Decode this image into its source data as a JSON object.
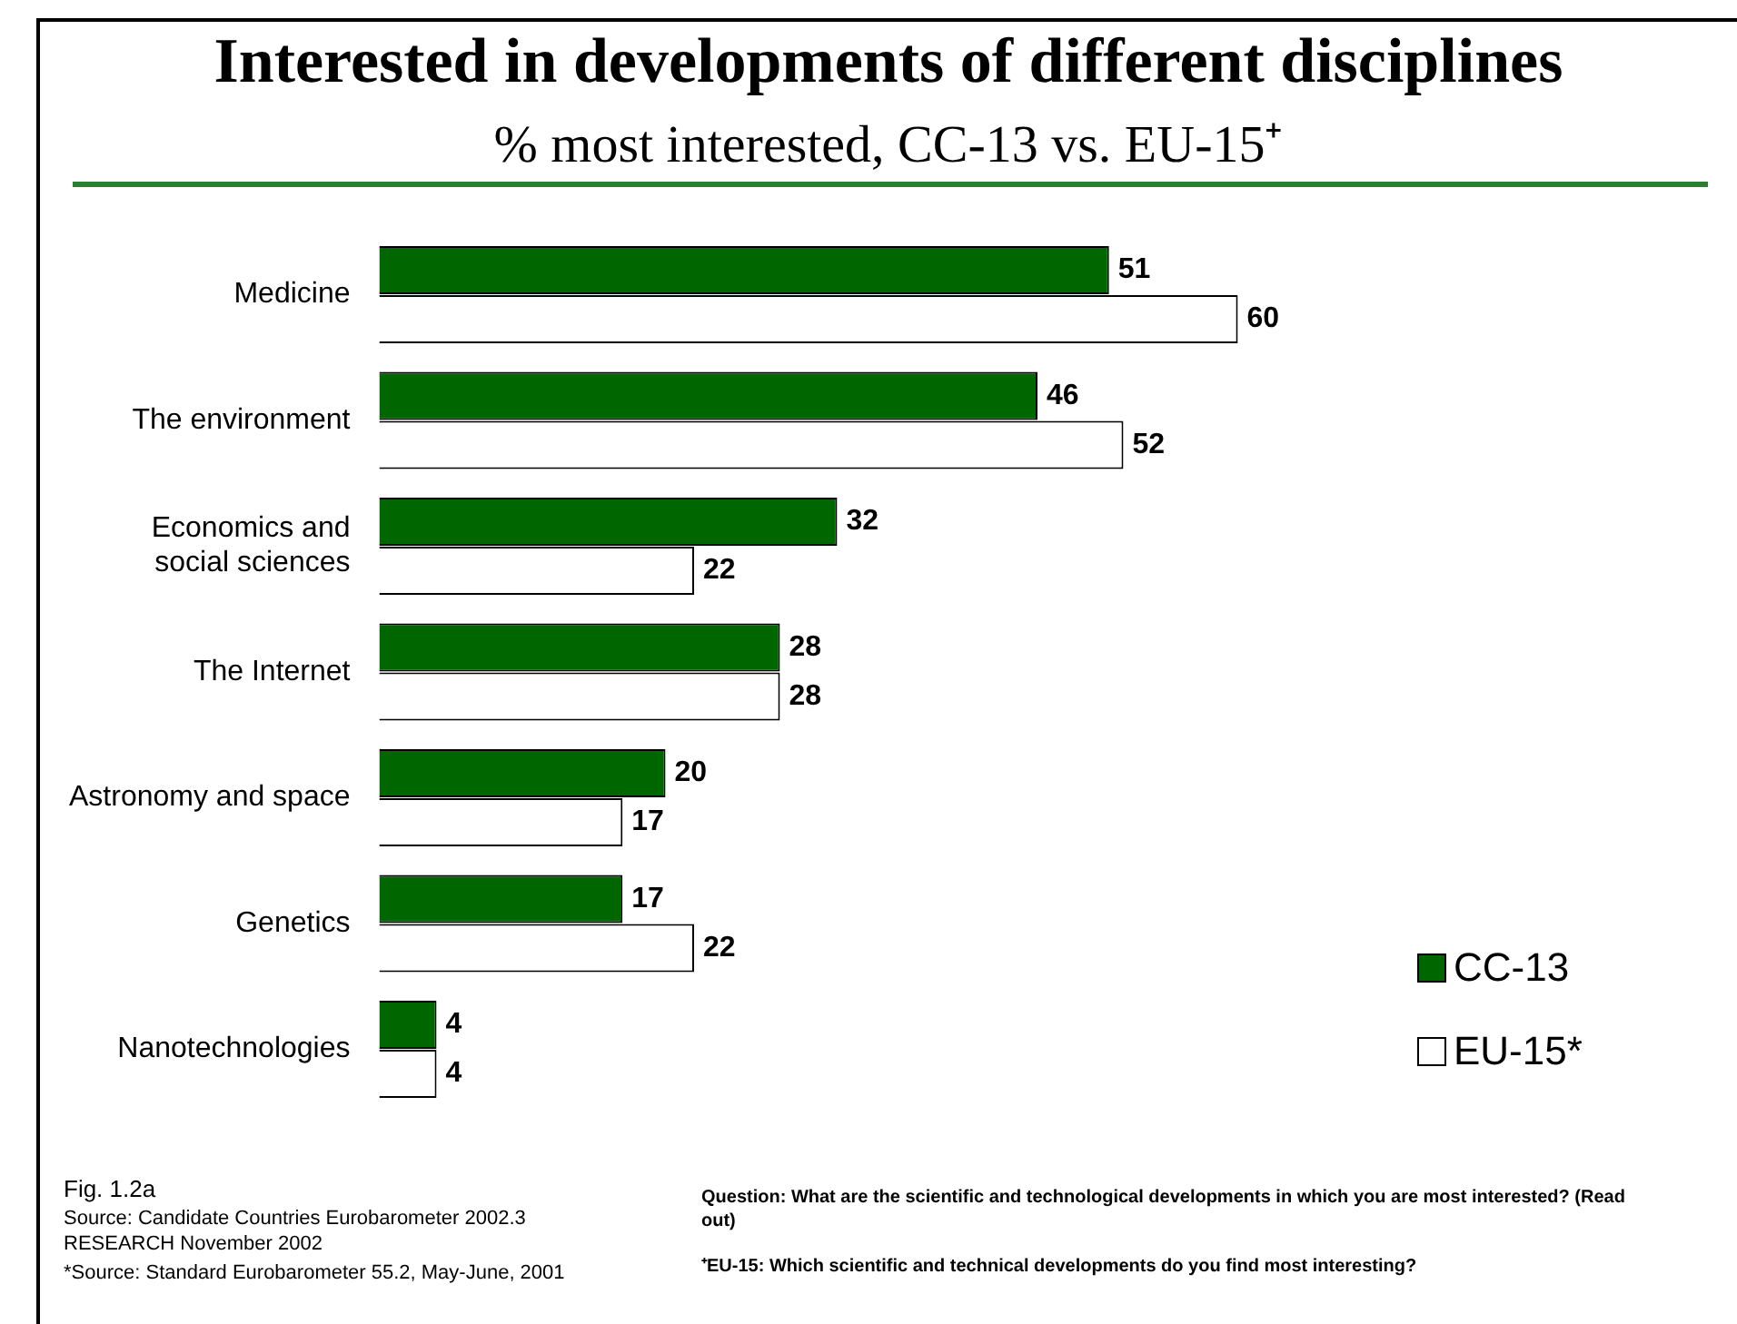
{
  "chart_data": {
    "type": "bar",
    "orientation": "horizontal",
    "title": "Interested in developments of different disciplines",
    "subtitle": "% most interested, CC-13 vs. EU-15⁺",
    "categories": [
      "Medicine",
      "The environment",
      "Economics and social sciences",
      "The Internet",
      "Astronomy and space",
      "Genetics",
      "Nanotechnologies"
    ],
    "series": [
      {
        "name": "CC-13",
        "color": "#006600",
        "values": [
          51,
          46,
          32,
          28,
          20,
          17,
          4
        ]
      },
      {
        "name": "EU-15*",
        "color": "#ffffff",
        "values": [
          60,
          52,
          22,
          28,
          17,
          22,
          4
        ]
      }
    ],
    "data_labels": true,
    "legend": "bottom right",
    "annotations": [
      "Fig. 1.2a",
      "Source: Candidate Countries Eurobarometer 2002.3 RESEARCH November 2002",
      "*Source: Standard Eurobarometer 55.2, May-June, 2001",
      "Question: What are the scientific and technological developments in which you are most interested? (Read out)",
      "⁺EU-15: Which scientific and technical developments do you find most interesting?"
    ]
  }
}
